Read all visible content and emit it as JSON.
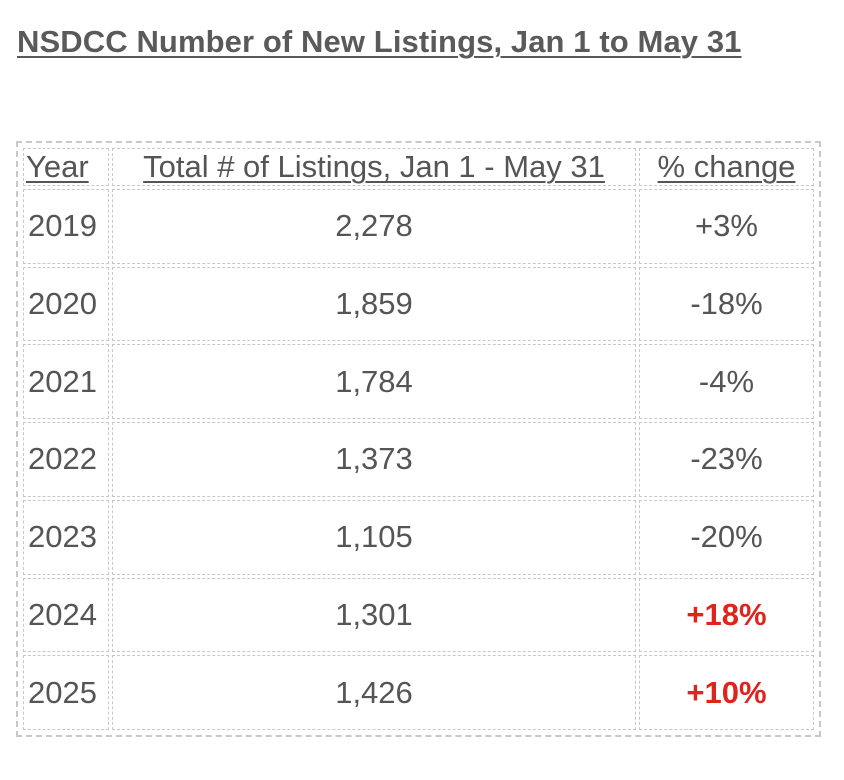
{
  "title": "NSDCC Number of New Listings, Jan 1 to May 31",
  "table": {
    "headers": {
      "year": "Year",
      "total": "Total # of Listings, Jan 1 - May 31",
      "change": "% change"
    },
    "rows": [
      {
        "year": "2019",
        "total": "2,278",
        "change": "+3%",
        "highlight": false
      },
      {
        "year": "2020",
        "total": "1,859",
        "change": "-18%",
        "highlight": false
      },
      {
        "year": "2021",
        "total": "1,784",
        "change": "-4%",
        "highlight": false
      },
      {
        "year": "2022",
        "total": "1,373",
        "change": "-23%",
        "highlight": false
      },
      {
        "year": "2023",
        "total": "1,105",
        "change": "-20%",
        "highlight": false
      },
      {
        "year": "2024",
        "total": "1,301",
        "change": "+18%",
        "highlight": true
      },
      {
        "year": "2025",
        "total": "1,426",
        "change": "+10%",
        "highlight": true
      }
    ]
  },
  "colors": {
    "text": "#555555",
    "highlight": "#e0241b",
    "border": "#c8c8c8"
  }
}
